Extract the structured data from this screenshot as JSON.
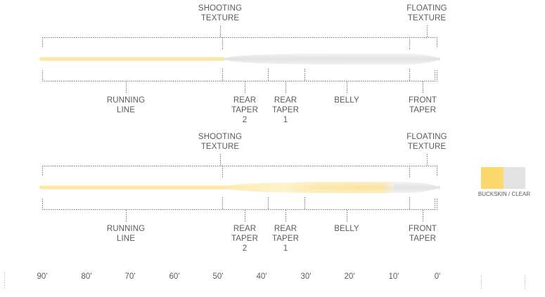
{
  "diagrams": [
    {
      "name": "fly-line-clear-tip",
      "top_labels": [
        {
          "id": "shooting-texture",
          "lines": [
            "SHOOTING",
            "TEXTURE"
          ]
        },
        {
          "id": "floating-texture",
          "lines": [
            "FLOATING",
            "TEXTURE"
          ]
        }
      ],
      "bottom_labels": [
        {
          "id": "running-line",
          "lines": [
            "RUNNING",
            "LINE"
          ]
        },
        {
          "id": "rear-taper-2",
          "lines": [
            "REAR",
            "TAPER",
            "2"
          ]
        },
        {
          "id": "rear-taper-1",
          "lines": [
            "REAR",
            "TAPER",
            "1"
          ]
        },
        {
          "id": "belly",
          "lines": [
            "BELLY"
          ]
        },
        {
          "id": "front-taper",
          "lines": [
            "FRONT",
            "TAPER"
          ]
        }
      ]
    },
    {
      "name": "fly-line-buckskin-tip",
      "top_labels": [
        {
          "id": "shooting-texture",
          "lines": [
            "SHOOTING",
            "TEXTURE"
          ]
        },
        {
          "id": "floating-texture",
          "lines": [
            "FLOATING",
            "TEXTURE"
          ]
        }
      ],
      "bottom_labels": [
        {
          "id": "running-line",
          "lines": [
            "RUNNING",
            "LINE"
          ]
        },
        {
          "id": "rear-taper-2",
          "lines": [
            "REAR",
            "TAPER",
            "2"
          ]
        },
        {
          "id": "rear-taper-1",
          "lines": [
            "REAR",
            "TAPER",
            "1"
          ]
        },
        {
          "id": "belly",
          "lines": [
            "BELLY"
          ]
        },
        {
          "id": "front-taper",
          "lines": [
            "FRONT",
            "TAPER"
          ]
        }
      ]
    }
  ],
  "scale_ticks": [
    "90'",
    "80'",
    "70'",
    "60'",
    "50'",
    "40'",
    "30'",
    "20'",
    "10'",
    "0'"
  ],
  "legend": {
    "caption": "BUCKSKIN / CLEAR",
    "colors": {
      "buckskin": "#fbd96e",
      "clear": "#e3e3e3"
    }
  },
  "colors": {
    "running_line": "#fde9a6",
    "clear_line": "#e6e6e6",
    "bracket": "#7a7a7a"
  }
}
